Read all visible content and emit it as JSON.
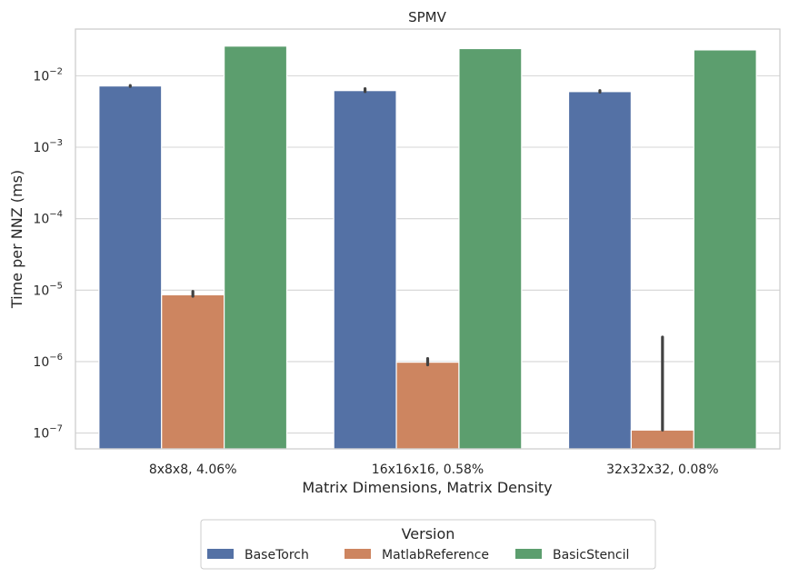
{
  "chart_data": {
    "type": "bar",
    "title": "SPMV",
    "xlabel": "Matrix Dimensions, Matrix Density",
    "ylabel": "Time per NNZ (ms)",
    "yscale": "log",
    "ylim": [
      6e-08,
      0.045
    ],
    "yticks": [
      {
        "value": 1e-07,
        "base": "10",
        "exp": "−7"
      },
      {
        "value": 1e-06,
        "base": "10",
        "exp": "−6"
      },
      {
        "value": 1e-05,
        "base": "10",
        "exp": "−5"
      },
      {
        "value": 0.0001,
        "base": "10",
        "exp": "−4"
      },
      {
        "value": 0.001,
        "base": "10",
        "exp": "−3"
      },
      {
        "value": 0.01,
        "base": "10",
        "exp": "−2"
      }
    ],
    "grid": true,
    "categories": [
      "8x8x8, 4.06%",
      "16x16x16, 0.58%",
      "32x32x32, 0.08%"
    ],
    "series": [
      {
        "name": "BaseTorch",
        "color": "#5471a5",
        "values": [
          0.0072,
          0.0062,
          0.006
        ],
        "errors": [
          [
            0.0071,
            0.0073
          ],
          [
            0.006,
            0.0066
          ],
          [
            0.0059,
            0.0062
          ]
        ]
      },
      {
        "name": "MatlabReference",
        "color": "#cd8560",
        "values": [
          8.6e-06,
          9.8e-07,
          1.1e-07
        ],
        "errors": [
          [
            8.2e-06,
            9.6e-06
          ],
          [
            9e-07,
            1.1e-06
          ],
          [
            1.1e-07,
            2.2e-06
          ]
        ]
      },
      {
        "name": "BasicStencil",
        "color": "#5c9e6e",
        "values": [
          0.026,
          0.024,
          0.023
        ],
        "errors": [
          null,
          null,
          null
        ]
      }
    ],
    "legend": {
      "title": "Version",
      "position": "bottom-center"
    }
  }
}
